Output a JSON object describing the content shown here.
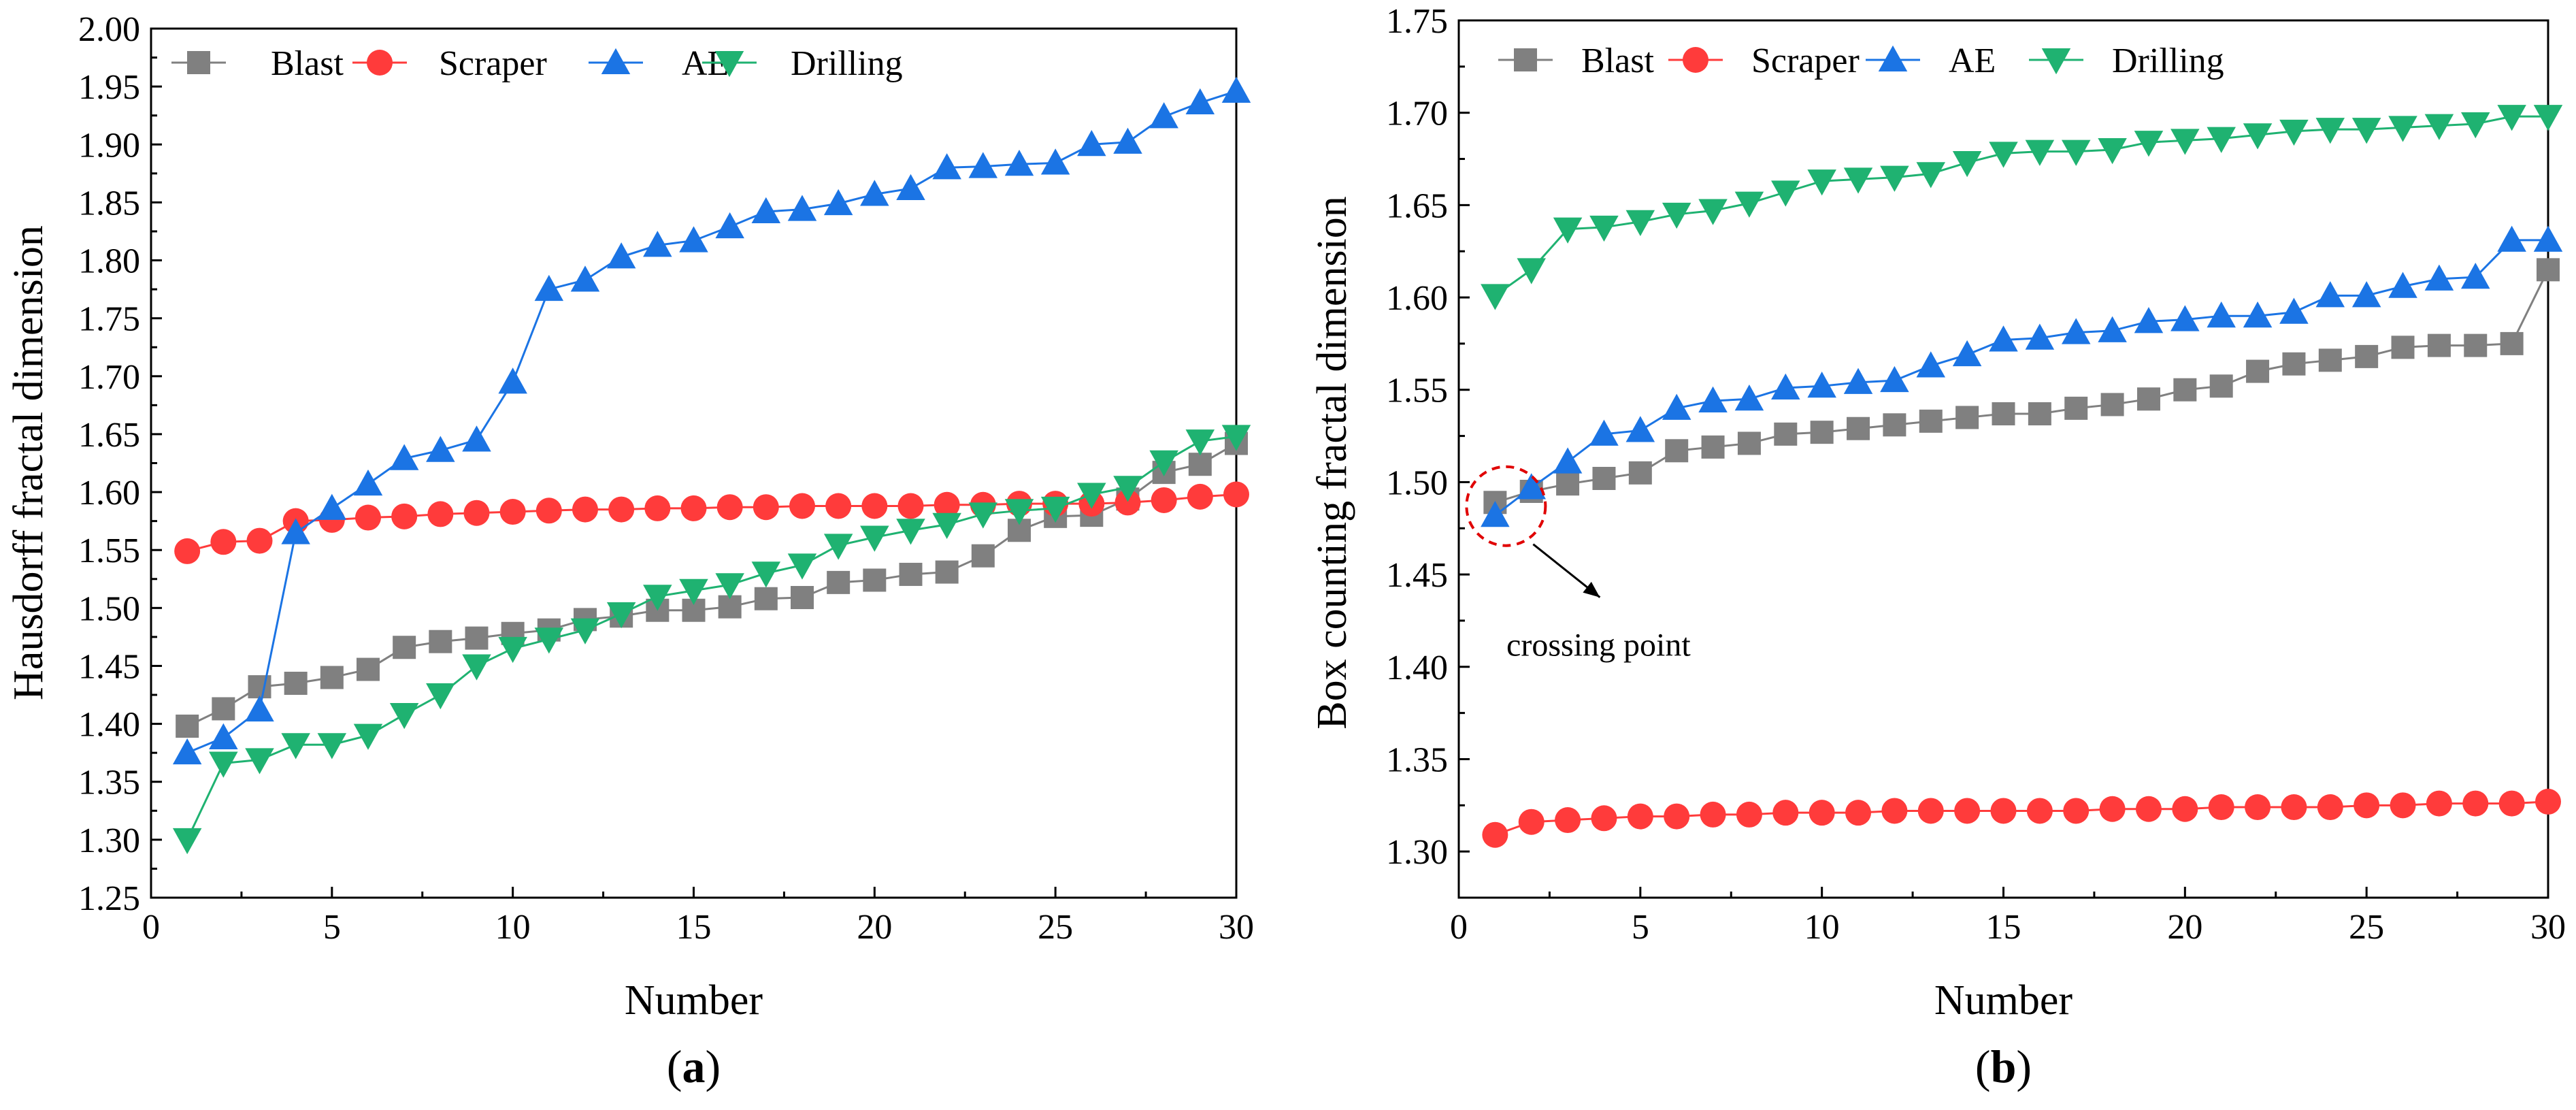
{
  "chart_data": [
    {
      "type": "line",
      "panel_label": "(a)",
      "panel_letter": "a",
      "title": "",
      "xlabel": "Number",
      "ylabel": "Hausdorff fractal dimension",
      "xlim": [
        0,
        30
      ],
      "ylim": [
        1.25,
        2.0
      ],
      "xticks": [
        0,
        5,
        10,
        15,
        20,
        25,
        30
      ],
      "xtick_labels": [
        "0",
        "5",
        "10",
        "15",
        "20",
        "25",
        "30"
      ],
      "yticks": [
        1.25,
        1.3,
        1.35,
        1.4,
        1.45,
        1.5,
        1.55,
        1.6,
        1.65,
        1.7,
        1.75,
        1.8,
        1.85,
        1.9,
        1.95,
        2.0
      ],
      "ytick_labels": [
        "1.25",
        "1.30",
        "1.35",
        "1.40",
        "1.45",
        "1.50",
        "1.55",
        "1.60",
        "1.65",
        "1.70",
        "1.75",
        "1.80",
        "1.85",
        "1.90",
        "1.95",
        "2.00"
      ],
      "legend_position": "top-left",
      "x": [
        1,
        2,
        3,
        4,
        5,
        6,
        7,
        8,
        9,
        10,
        11,
        12,
        13,
        14,
        15,
        16,
        17,
        18,
        19,
        20,
        21,
        22,
        23,
        24,
        25,
        26,
        27,
        28,
        29,
        30
      ],
      "series": [
        {
          "name": "Blast",
          "color": "#808080",
          "marker": "square",
          "values": [
            1.398,
            1.413,
            1.432,
            1.435,
            1.44,
            1.447,
            1.466,
            1.471,
            1.474,
            1.478,
            1.481,
            1.49,
            1.493,
            1.498,
            1.498,
            1.501,
            1.508,
            1.509,
            1.522,
            1.524,
            1.529,
            1.531,
            1.545,
            1.567,
            1.579,
            1.58,
            1.594,
            1.617,
            1.624,
            1.642
          ]
        },
        {
          "name": "Scraper",
          "color": "#ff3b3b",
          "marker": "circle",
          "values": [
            1.549,
            1.557,
            1.558,
            1.575,
            1.576,
            1.578,
            1.579,
            1.581,
            1.582,
            1.583,
            1.584,
            1.585,
            1.585,
            1.586,
            1.586,
            1.587,
            1.587,
            1.588,
            1.588,
            1.588,
            1.588,
            1.589,
            1.589,
            1.59,
            1.59,
            1.59,
            1.591,
            1.593,
            1.596,
            1.598
          ]
        },
        {
          "name": "AE",
          "color": "#1b74e4",
          "marker": "triangle-up",
          "values": [
            1.375,
            1.388,
            1.412,
            1.565,
            1.586,
            1.607,
            1.629,
            1.636,
            1.645,
            1.695,
            1.775,
            1.783,
            1.803,
            1.813,
            1.817,
            1.829,
            1.842,
            1.844,
            1.849,
            1.857,
            1.862,
            1.88,
            1.881,
            1.883,
            1.884,
            1.9,
            1.902,
            1.924,
            1.936,
            1.946
          ]
        },
        {
          "name": "Drilling",
          "color": "#1fb271",
          "marker": "triangle-down",
          "values": [
            1.3,
            1.366,
            1.369,
            1.382,
            1.382,
            1.39,
            1.408,
            1.425,
            1.45,
            1.465,
            1.473,
            1.481,
            1.495,
            1.51,
            1.515,
            1.52,
            1.53,
            1.537,
            1.554,
            1.561,
            1.567,
            1.572,
            1.581,
            1.584,
            1.586,
            1.598,
            1.604,
            1.626,
            1.644,
            1.648
          ]
        }
      ]
    },
    {
      "type": "line",
      "panel_label": "(b)",
      "panel_letter": "b",
      "title": "",
      "xlabel": "Number",
      "ylabel": "Box counting fractal dimension",
      "xlim": [
        0,
        30
      ],
      "ylim": [
        1.275,
        1.75
      ],
      "xticks": [
        0,
        5,
        10,
        15,
        20,
        25,
        30
      ],
      "xtick_labels": [
        "0",
        "5",
        "10",
        "15",
        "20",
        "25",
        "30"
      ],
      "yticks": [
        1.3,
        1.35,
        1.4,
        1.45,
        1.5,
        1.55,
        1.6,
        1.65,
        1.7,
        1.75
      ],
      "ytick_labels": [
        "1.30",
        "1.35",
        "1.40",
        "1.45",
        "1.50",
        "1.55",
        "1.60",
        "1.65",
        "1.70",
        "1.75"
      ],
      "legend_position": "top-left",
      "annotation": {
        "text": "crossing point",
        "x": 1.3,
        "y": 1.487
      },
      "x": [
        1,
        2,
        3,
        4,
        5,
        6,
        7,
        8,
        9,
        10,
        11,
        12,
        13,
        14,
        15,
        16,
        17,
        18,
        19,
        20,
        21,
        22,
        23,
        24,
        25,
        26,
        27,
        28,
        29,
        30
      ],
      "series": [
        {
          "name": "Blast",
          "color": "#808080",
          "marker": "square",
          "values": [
            1.489,
            1.495,
            1.499,
            1.502,
            1.505,
            1.517,
            1.519,
            1.521,
            1.526,
            1.527,
            1.529,
            1.531,
            1.533,
            1.535,
            1.537,
            1.537,
            1.54,
            1.542,
            1.545,
            1.55,
            1.552,
            1.56,
            1.564,
            1.566,
            1.568,
            1.573,
            1.574,
            1.574,
            1.575,
            1.615
          ]
        },
        {
          "name": "Scraper",
          "color": "#ff3b3b",
          "marker": "circle",
          "values": [
            1.309,
            1.316,
            1.317,
            1.318,
            1.319,
            1.319,
            1.32,
            1.32,
            1.321,
            1.321,
            1.321,
            1.322,
            1.322,
            1.322,
            1.322,
            1.322,
            1.322,
            1.323,
            1.323,
            1.323,
            1.324,
            1.324,
            1.324,
            1.324,
            1.325,
            1.325,
            1.326,
            1.326,
            1.326,
            1.327
          ]
        },
        {
          "name": "AE",
          "color": "#1b74e4",
          "marker": "triangle-up",
          "values": [
            1.482,
            1.497,
            1.511,
            1.526,
            1.528,
            1.54,
            1.544,
            1.545,
            1.551,
            1.552,
            1.554,
            1.555,
            1.563,
            1.569,
            1.577,
            1.578,
            1.581,
            1.582,
            1.587,
            1.588,
            1.59,
            1.59,
            1.592,
            1.601,
            1.601,
            1.606,
            1.61,
            1.611,
            1.631,
            1.631
          ]
        },
        {
          "name": "Drilling",
          "color": "#1fb271",
          "marker": "triangle-down",
          "values": [
            1.601,
            1.615,
            1.637,
            1.638,
            1.641,
            1.645,
            1.647,
            1.651,
            1.657,
            1.663,
            1.664,
            1.665,
            1.667,
            1.673,
            1.678,
            1.679,
            1.679,
            1.68,
            1.684,
            1.685,
            1.686,
            1.688,
            1.69,
            1.691,
            1.691,
            1.692,
            1.693,
            1.694,
            1.698,
            1.698
          ]
        }
      ]
    }
  ]
}
